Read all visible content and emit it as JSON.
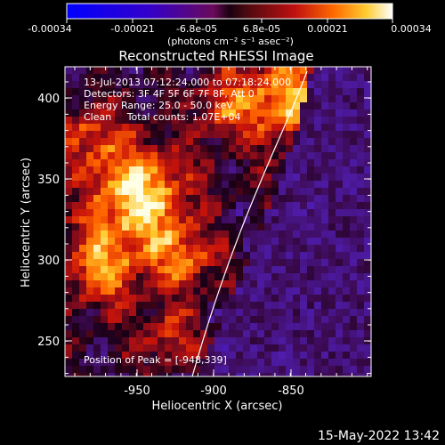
{
  "colorbar": {
    "ticks": [
      "-0.00034",
      "-0.00021",
      "-6.8e-05",
      "6.8e-05",
      "0.00021",
      "0.00034"
    ],
    "unit_label": "(photons cm⁻² s⁻¹ asec⁻²)"
  },
  "image": {
    "title": "Reconstructed RHESSI Image",
    "annotations": [
      "13-Jul-2013 07:12:24.000 to 07:18:24.000",
      "Detectors: 3F 4F 5F 6F 7F 8F, Att 0",
      "Energy Range: 25.0 - 50.0 keV",
      "Clean     Total counts: 1.07E+04"
    ],
    "peak_label": "Position of Peak = [-948,339]"
  },
  "axes": {
    "xlabel": "Heliocentric X (arcsec)",
    "ylabel": "Heliocentric Y (arcsec)",
    "xticks": [
      "-950",
      "-900",
      "-850"
    ],
    "yticks": [
      "400",
      "350",
      "300",
      "250"
    ]
  },
  "footer": {
    "date": "15-May-2022 13:42"
  },
  "chart_data": {
    "type": "heatmap",
    "title": "Reconstructed RHESSI Image",
    "xlabel": "Heliocentric X (arcsec)",
    "ylabel": "Heliocentric Y (arcsec)",
    "xlim": [
      -992,
      -898
    ],
    "ylim": [
      228,
      420
    ],
    "color_range": [
      -0.00034,
      0.00034
    ],
    "peak": [
      -948,
      339
    ],
    "limb_curve": "white"
  }
}
